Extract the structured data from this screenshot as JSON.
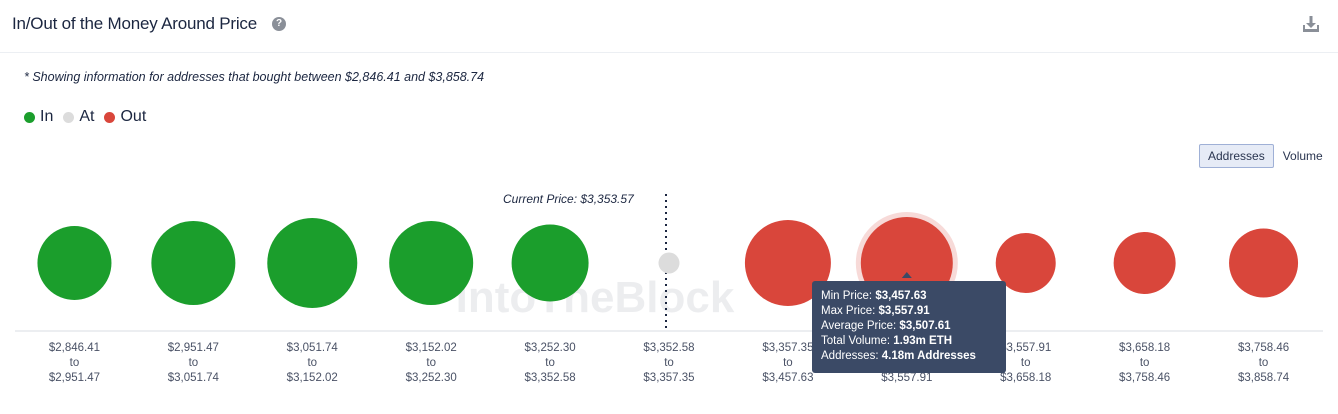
{
  "header": {
    "title": "In/Out of the Money Around Price"
  },
  "note": "* Showing information for addresses that bought between $2,846.41 and $3,858.74",
  "legend": [
    {
      "label": "In",
      "color": "#1b9e2c"
    },
    {
      "label": "At",
      "color": "#dcdcdc"
    },
    {
      "label": "Out",
      "color": "#d9463b"
    }
  ],
  "toggle": {
    "addresses": "Addresses",
    "volume": "Volume"
  },
  "current_price_label": "Current Price: $3,353.57",
  "watermark": "IntoTheBlock",
  "tooltip": {
    "min_label": "Min Price:",
    "min_value": "$3,457.63",
    "max_label": "Max Price:",
    "max_value": "$3,557.91",
    "avg_label": "Average Price:",
    "avg_value": "$3,507.61",
    "vol_label": "Total Volume:",
    "vol_value": "1.93m ETH",
    "addr_label": "Addresses:",
    "addr_value": "4.18m Addresses"
  },
  "chart_data": {
    "type": "bubble",
    "series_colors": {
      "in": "#1b9e2c",
      "at": "#dcdcdc",
      "out": "#d9463b"
    },
    "buckets": [
      {
        "from": "$2,846.41",
        "to": "$2,951.47",
        "status": "in",
        "size": 37
      },
      {
        "from": "$2,951.47",
        "to": "$3,051.74",
        "status": "in",
        "size": 42
      },
      {
        "from": "$3,051.74",
        "to": "$3,152.02",
        "status": "in",
        "size": 45
      },
      {
        "from": "$3,152.02",
        "to": "$3,252.30",
        "status": "in",
        "size": 42
      },
      {
        "from": "$3,252.30",
        "to": "$3,352.58",
        "status": "in",
        "size": 38.5
      },
      {
        "from": "$3,352.58",
        "to": "$3,357.35",
        "status": "at",
        "size": 10.5
      },
      {
        "from": "$3,357.35",
        "to": "$3,457.63",
        "status": "out",
        "size": 43
      },
      {
        "from": "$3,457.63",
        "to": "$3,557.91",
        "status": "out",
        "size": 46,
        "highlighted": true
      },
      {
        "from": "$3,557.91",
        "to": "$3,658.18",
        "status": "out",
        "size": 30
      },
      {
        "from": "$3,658.18",
        "to": "$3,758.46",
        "status": "out",
        "size": 31
      },
      {
        "from": "$3,758.46",
        "to": "$3,858.74",
        "status": "out",
        "size": 34.5
      }
    ],
    "tick_connector": "to"
  }
}
